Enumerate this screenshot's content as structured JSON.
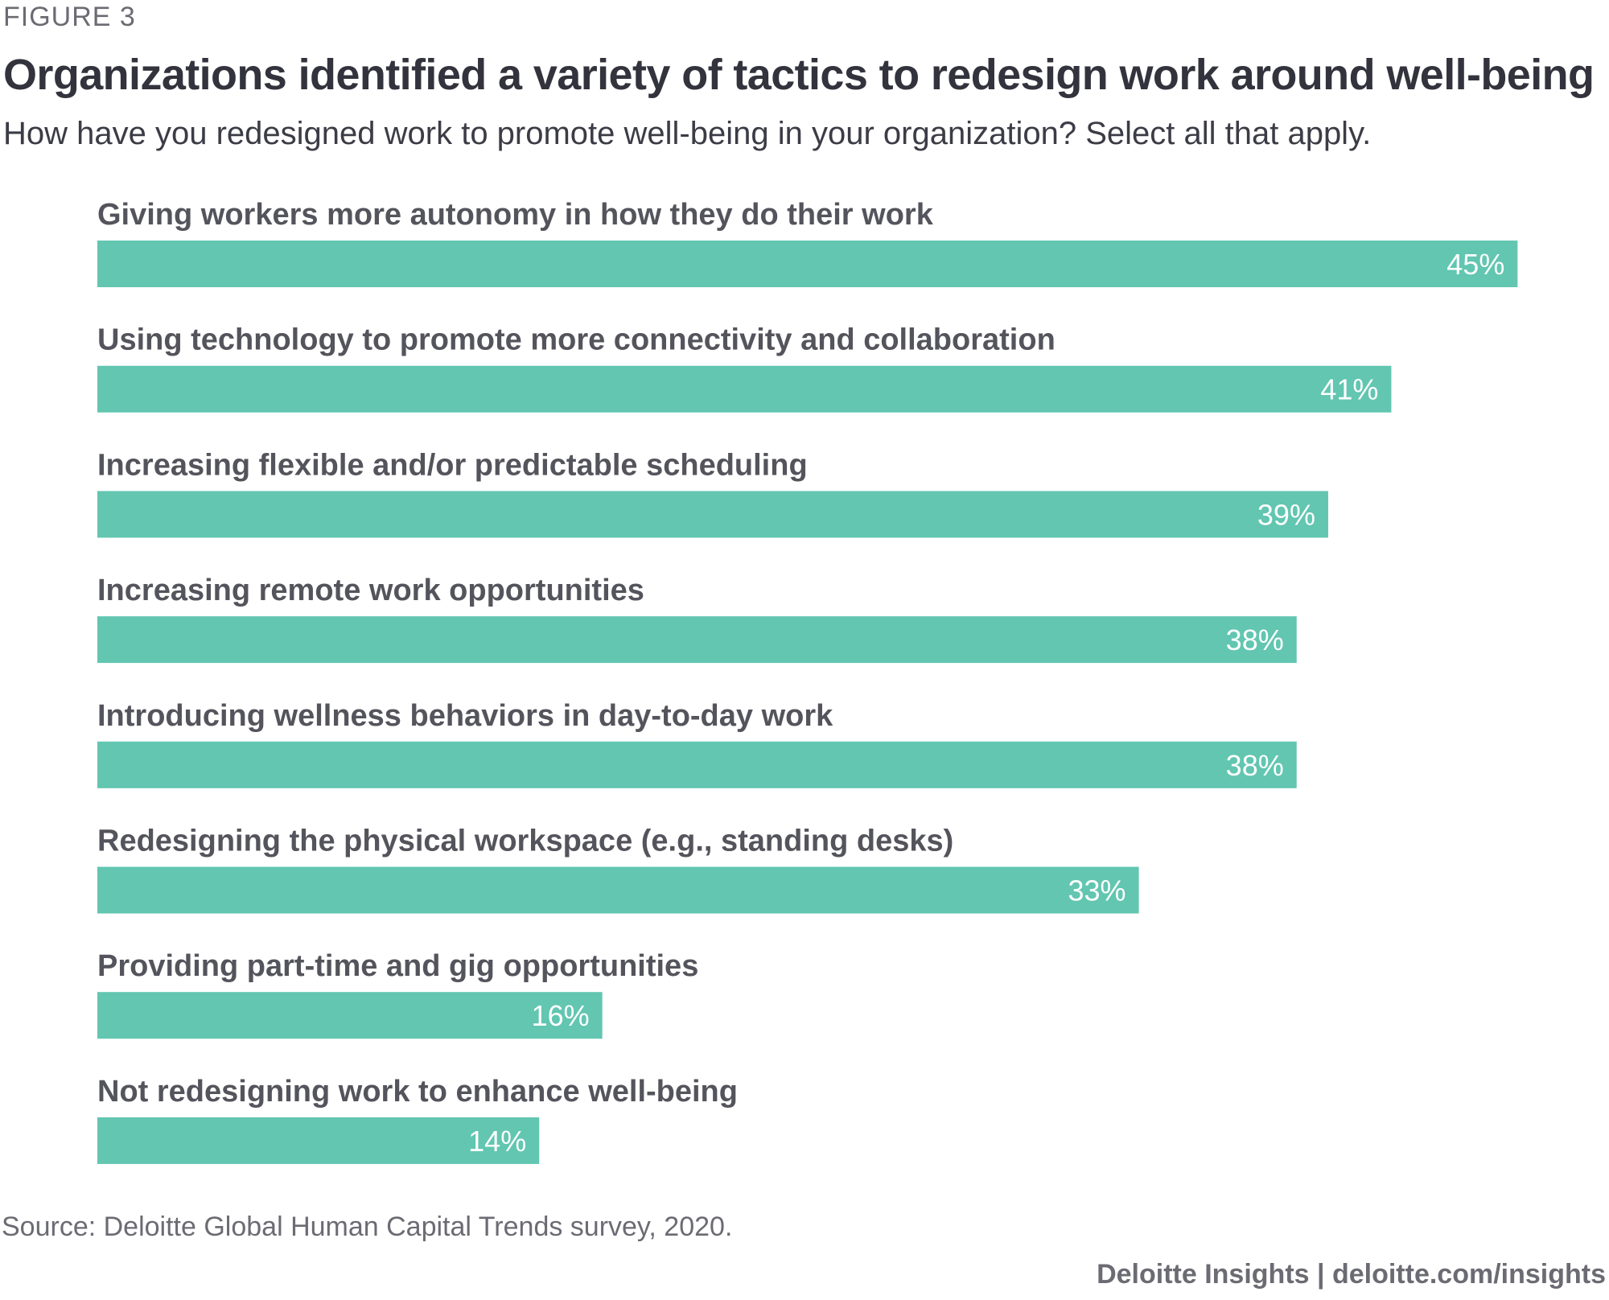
{
  "figure_label": "FIGURE 3",
  "chart_data": {
    "type": "bar",
    "orientation": "horizontal",
    "title": "Organizations identified a variety of tactics to redesign work around well-being",
    "subtitle": "How have you redesigned work to promote well-being in your organization? Select all that apply.",
    "categories": [
      "Giving workers more autonomy in how they do their work",
      "Using technology to promote more connectivity and collaboration",
      "Increasing flexible and/or predictable scheduling",
      "Increasing remote work opportunities",
      "Introducing wellness behaviors in day-to-day work",
      "Redesigning the physical workspace (e.g., standing desks)",
      "Providing part-time and gig opportunities",
      "Not redesigning work to enhance well-being"
    ],
    "values": [
      45,
      41,
      39,
      38,
      38,
      33,
      16,
      14
    ],
    "value_labels": [
      "45%",
      "41%",
      "39%",
      "38%",
      "38%",
      "33%",
      "16%",
      "14%"
    ],
    "unit": "%",
    "grid": false,
    "legend": "none",
    "bar_color": "#62c6b1"
  },
  "source": "Source: Deloitte Global Human Capital Trends survey, 2020.",
  "brand": "Deloitte Insights | deloitte.com/insights"
}
